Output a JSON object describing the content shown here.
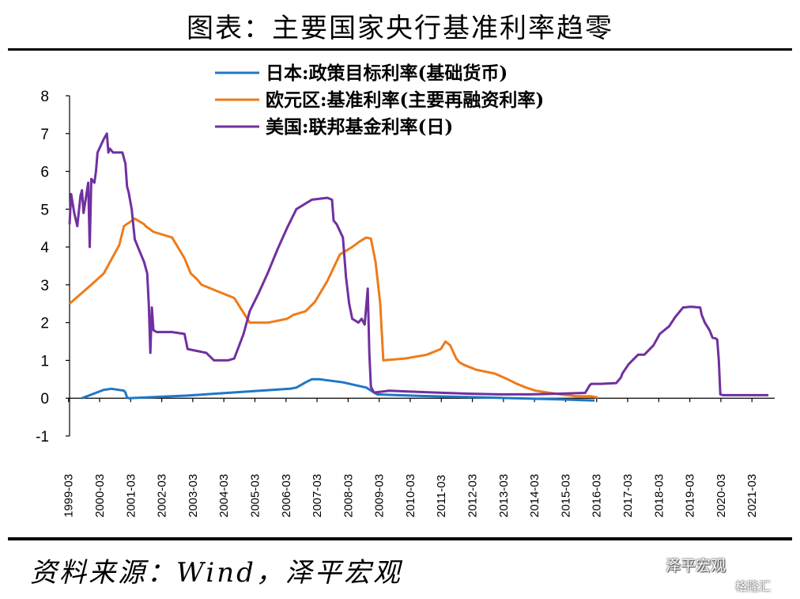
{
  "header": {
    "title": "图表：主要国家央行基准利率趋零"
  },
  "footer": {
    "source": "资料来源：Wind，泽平宏观",
    "watermark_main": "泽平宏观",
    "watermark_sub": "格隆汇"
  },
  "chart_data": {
    "type": "line",
    "title": "图表：主要国家央行基准利率趋零",
    "xlabel": "",
    "ylabel": "",
    "ylim": [
      -1,
      8
    ],
    "yticks": [
      -1,
      0,
      1,
      2,
      3,
      4,
      5,
      6,
      7,
      8
    ],
    "x_range": [
      1999.2,
      2021.9
    ],
    "x_tick_labels": [
      "1999-03",
      "2000-03",
      "2001-03",
      "2002-03",
      "2003-03",
      "2004-03",
      "2005-03",
      "2006-03",
      "2007-03",
      "2008-03",
      "2009-03",
      "2010-03",
      "2011-03",
      "2012-03",
      "2013-03",
      "2014-03",
      "2015-03",
      "2016-03",
      "2017-03",
      "2018-03",
      "2019-03",
      "2020-03",
      "2021-03"
    ],
    "legend_position": "top-center",
    "series": [
      {
        "name": "日本:政策目标利率(基础货币)",
        "color": "#1f77c4",
        "width": 3,
        "x": [
          1999.6,
          2000.3,
          2000.55,
          2000.95,
          2001.0,
          2001.05,
          2001.1,
          2003.0,
          2005.0,
          2006.3,
          2006.5,
          2006.8,
          2007.0,
          2007.25,
          2008.0,
          2008.75,
          2009.1,
          2010.5,
          2012.0,
          2013.5,
          2015.0,
          2016.05,
          2016.1
        ],
        "y": [
          0.0,
          0.22,
          0.25,
          0.2,
          0.15,
          0.02,
          0.0,
          0.07,
          0.18,
          0.25,
          0.28,
          0.42,
          0.5,
          0.5,
          0.42,
          0.28,
          0.1,
          0.06,
          0.03,
          0.0,
          -0.03,
          -0.06,
          -0.06
        ]
      },
      {
        "name": "欧元区:基准利率(主要再融资利率)",
        "color": "#ee7b1a",
        "width": 3,
        "x": [
          1999.2,
          1999.9,
          2000.3,
          2000.8,
          2000.95,
          2001.3,
          2001.6,
          2001.65,
          2001.9,
          2002.5,
          2002.9,
          2003.1,
          2003.3,
          2003.45,
          2003.9,
          2004.5,
          2005.0,
          2005.6,
          2005.9,
          2006.2,
          2006.4,
          2006.8,
          2007.1,
          2007.5,
          2007.9,
          2008.3,
          2008.55,
          2008.75,
          2008.9,
          2009.05,
          2009.2,
          2009.3,
          2010.0,
          2010.7,
          2011.0,
          2011.15,
          2011.3,
          2011.45,
          2011.65,
          2011.75,
          2011.9,
          2012.3,
          2012.9,
          2013.3,
          2013.6,
          2013.9,
          2014.2,
          2014.6,
          2015.0,
          2015.5,
          2016.0,
          2016.2
        ],
        "y": [
          2.5,
          3.0,
          3.3,
          4.05,
          4.55,
          4.75,
          4.6,
          4.55,
          4.4,
          4.25,
          3.7,
          3.3,
          3.15,
          3.0,
          2.85,
          2.65,
          2.0,
          2.0,
          2.05,
          2.1,
          2.2,
          2.3,
          2.55,
          3.1,
          3.8,
          4.0,
          4.15,
          4.25,
          4.22,
          3.6,
          2.5,
          1.0,
          1.05,
          1.15,
          1.25,
          1.3,
          1.5,
          1.4,
          1.05,
          0.95,
          0.88,
          0.75,
          0.65,
          0.5,
          0.38,
          0.28,
          0.2,
          0.15,
          0.1,
          0.05,
          0.05,
          0.02
        ]
      },
      {
        "name": "美国:联邦基金利率(日)",
        "color": "#7030a0",
        "width": 3,
        "x": [
          1999.2,
          1999.25,
          1999.35,
          1999.45,
          1999.55,
          1999.6,
          1999.65,
          1999.8,
          1999.85,
          1999.9,
          2000.0,
          2000.05,
          2000.1,
          2000.3,
          2000.4,
          2000.45,
          2000.5,
          2000.55,
          2000.6,
          2000.75,
          2000.9,
          2001.0,
          2001.05,
          2001.1,
          2001.2,
          2001.3,
          2001.45,
          2001.6,
          2001.7,
          2001.75,
          2001.8,
          2001.85,
          2001.9,
          2002.0,
          2002.5,
          2002.9,
          2003.0,
          2003.3,
          2003.6,
          2003.85,
          2004.0,
          2004.3,
          2004.5,
          2004.8,
          2005.0,
          2005.3,
          2005.6,
          2005.9,
          2006.2,
          2006.5,
          2007.0,
          2007.5,
          2007.65,
          2007.7,
          2007.8,
          2008.0,
          2008.1,
          2008.2,
          2008.3,
          2008.5,
          2008.6,
          2008.7,
          2008.8,
          2008.85,
          2008.9,
          2009.0,
          2009.5,
          2010.0,
          2011.0,
          2012.0,
          2013.0,
          2014.0,
          2015.0,
          2015.8,
          2015.95,
          2016.0,
          2016.3,
          2016.8,
          2016.95,
          2017.0,
          2017.2,
          2017.5,
          2017.7,
          2018.0,
          2018.2,
          2018.5,
          2018.7,
          2018.95,
          2019.2,
          2019.5,
          2019.55,
          2019.65,
          2019.8,
          2019.9,
          2020.0,
          2020.05,
          2020.1,
          2020.15,
          2020.25,
          2020.5,
          2021.0,
          2021.5,
          2021.7
        ],
        "y": [
          4.6,
          5.4,
          4.9,
          4.55,
          5.35,
          5.5,
          4.9,
          5.7,
          4.0,
          5.8,
          5.7,
          6.0,
          6.5,
          6.85,
          7.0,
          6.5,
          6.6,
          6.55,
          6.5,
          6.5,
          6.5,
          6.2,
          5.6,
          5.45,
          5.0,
          4.2,
          3.9,
          3.6,
          3.3,
          2.5,
          1.2,
          2.4,
          1.8,
          1.75,
          1.75,
          1.7,
          1.3,
          1.25,
          1.2,
          1.0,
          1.0,
          1.0,
          1.05,
          1.7,
          2.3,
          2.8,
          3.35,
          3.95,
          4.5,
          5.0,
          5.25,
          5.3,
          5.25,
          4.7,
          4.6,
          4.25,
          3.2,
          2.5,
          2.1,
          2.0,
          2.1,
          1.95,
          2.9,
          1.2,
          0.3,
          0.15,
          0.2,
          0.18,
          0.15,
          0.12,
          0.1,
          0.1,
          0.12,
          0.14,
          0.35,
          0.38,
          0.38,
          0.4,
          0.55,
          0.66,
          0.9,
          1.15,
          1.15,
          1.4,
          1.7,
          1.9,
          2.15,
          2.4,
          2.42,
          2.4,
          2.2,
          2.0,
          1.8,
          1.6,
          1.58,
          1.55,
          1.0,
          0.1,
          0.08,
          0.08,
          0.08,
          0.08,
          0.08
        ]
      }
    ]
  }
}
